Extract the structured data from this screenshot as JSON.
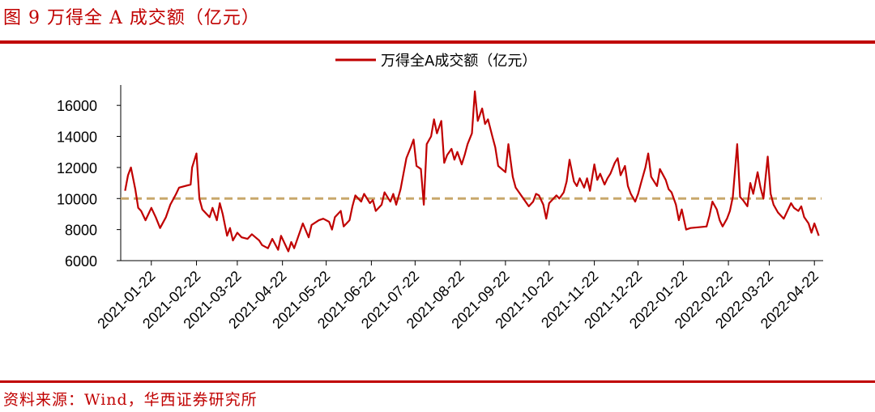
{
  "header": {
    "figure_title": "图 9 万得全 A 成交额（亿元）"
  },
  "footer": {
    "source": "资料来源：Wind，华西证券研究所"
  },
  "colors": {
    "accent": "#c00000",
    "series": "#c00000",
    "reference": "#c8a86b"
  },
  "chart_data": {
    "type": "line",
    "title": "",
    "xlabel": "",
    "ylabel": "",
    "ylim": [
      6000,
      17000
    ],
    "yticks": [
      6000,
      8000,
      10000,
      12000,
      14000,
      16000
    ],
    "xticks": [
      "2021-01-22",
      "2021-02-22",
      "2021-03-22",
      "2021-04-22",
      "2021-05-22",
      "2021-06-22",
      "2021-07-22",
      "2021-08-22",
      "2021-09-22",
      "2021-10-22",
      "2021-11-22",
      "2021-12-22",
      "2022-01-22",
      "2022-02-22",
      "2022-03-22",
      "2022-04-22"
    ],
    "xlim": [
      "2021-01-01",
      "2022-04-28"
    ],
    "legend": {
      "position": "top-center",
      "entries": [
        "万得全A成交额（亿元）"
      ]
    },
    "grid": false,
    "reference_line": {
      "value": 10000,
      "style": "dashed"
    },
    "series": [
      {
        "name": "万得全A成交额（亿元）",
        "points": [
          [
            "2021-01-04",
            10500
          ],
          [
            "2021-01-06",
            11500
          ],
          [
            "2021-01-08",
            12000
          ],
          [
            "2021-01-11",
            10600
          ],
          [
            "2021-01-13",
            9400
          ],
          [
            "2021-01-15",
            9200
          ],
          [
            "2021-01-18",
            8600
          ],
          [
            "2021-01-20",
            9000
          ],
          [
            "2021-01-22",
            9400
          ],
          [
            "2021-01-25",
            8800
          ],
          [
            "2021-01-28",
            8100
          ],
          [
            "2021-02-01",
            8800
          ],
          [
            "2021-02-04",
            9600
          ],
          [
            "2021-02-08",
            10300
          ],
          [
            "2021-02-10",
            10700
          ],
          [
            "2021-02-18",
            10900
          ],
          [
            "2021-02-19",
            12000
          ],
          [
            "2021-02-22",
            12900
          ],
          [
            "2021-02-24",
            10000
          ],
          [
            "2021-02-26",
            9300
          ],
          [
            "2021-03-01",
            9000
          ],
          [
            "2021-03-03",
            8800
          ],
          [
            "2021-03-05",
            9400
          ],
          [
            "2021-03-08",
            8600
          ],
          [
            "2021-03-10",
            9700
          ],
          [
            "2021-03-12",
            9000
          ],
          [
            "2021-03-15",
            7600
          ],
          [
            "2021-03-17",
            8100
          ],
          [
            "2021-03-19",
            7300
          ],
          [
            "2021-03-22",
            7800
          ],
          [
            "2021-03-25",
            7500
          ],
          [
            "2021-03-29",
            7400
          ],
          [
            "2021-04-01",
            7700
          ],
          [
            "2021-04-06",
            7300
          ],
          [
            "2021-04-08",
            7000
          ],
          [
            "2021-04-12",
            6800
          ],
          [
            "2021-04-15",
            7400
          ],
          [
            "2021-04-19",
            6700
          ],
          [
            "2021-04-21",
            7600
          ],
          [
            "2021-04-23",
            7200
          ],
          [
            "2021-04-26",
            6600
          ],
          [
            "2021-04-28",
            7200
          ],
          [
            "2021-04-30",
            6800
          ],
          [
            "2021-05-06",
            8400
          ],
          [
            "2021-05-10",
            7500
          ],
          [
            "2021-05-12",
            8300
          ],
          [
            "2021-05-17",
            8600
          ],
          [
            "2021-05-20",
            8700
          ],
          [
            "2021-05-24",
            8500
          ],
          [
            "2021-05-26",
            8000
          ],
          [
            "2021-05-28",
            8800
          ],
          [
            "2021-06-01",
            9200
          ],
          [
            "2021-06-03",
            8200
          ],
          [
            "2021-06-07",
            8600
          ],
          [
            "2021-06-09",
            9500
          ],
          [
            "2021-06-11",
            10200
          ],
          [
            "2021-06-15",
            9800
          ],
          [
            "2021-06-17",
            10300
          ],
          [
            "2021-06-21",
            9700
          ],
          [
            "2021-06-23",
            9900
          ],
          [
            "2021-06-25",
            9200
          ],
          [
            "2021-06-29",
            9600
          ],
          [
            "2021-07-01",
            10400
          ],
          [
            "2021-07-05",
            9800
          ],
          [
            "2021-07-07",
            10300
          ],
          [
            "2021-07-09",
            9600
          ],
          [
            "2021-07-12",
            10600
          ],
          [
            "2021-07-14",
            11600
          ],
          [
            "2021-07-16",
            12600
          ],
          [
            "2021-07-19",
            13300
          ],
          [
            "2021-07-21",
            13800
          ],
          [
            "2021-07-23",
            12100
          ],
          [
            "2021-07-26",
            11900
          ],
          [
            "2021-07-28",
            9600
          ],
          [
            "2021-07-30",
            13500
          ],
          [
            "2021-08-02",
            14000
          ],
          [
            "2021-08-04",
            15100
          ],
          [
            "2021-08-06",
            14200
          ],
          [
            "2021-08-09",
            15000
          ],
          [
            "2021-08-11",
            12300
          ],
          [
            "2021-08-13",
            12800
          ],
          [
            "2021-08-16",
            13200
          ],
          [
            "2021-08-18",
            12500
          ],
          [
            "2021-08-20",
            13000
          ],
          [
            "2021-08-23",
            12200
          ],
          [
            "2021-08-25",
            12800
          ],
          [
            "2021-08-27",
            13500
          ],
          [
            "2021-08-30",
            14200
          ],
          [
            "2021-09-01",
            16900
          ],
          [
            "2021-09-03",
            15000
          ],
          [
            "2021-09-06",
            15800
          ],
          [
            "2021-09-08",
            14800
          ],
          [
            "2021-09-10",
            15100
          ],
          [
            "2021-09-13",
            14000
          ],
          [
            "2021-09-15",
            13300
          ],
          [
            "2021-09-17",
            12100
          ],
          [
            "2021-09-22",
            11700
          ],
          [
            "2021-09-24",
            13500
          ],
          [
            "2021-09-27",
            11400
          ],
          [
            "2021-09-29",
            10700
          ],
          [
            "2021-10-08",
            9500
          ],
          [
            "2021-10-11",
            9800
          ],
          [
            "2021-10-13",
            10300
          ],
          [
            "2021-10-15",
            10200
          ],
          [
            "2021-10-18",
            9600
          ],
          [
            "2021-10-20",
            8700
          ],
          [
            "2021-10-22",
            9700
          ],
          [
            "2021-10-25",
            10000
          ],
          [
            "2021-10-27",
            10200
          ],
          [
            "2021-10-29",
            10000
          ],
          [
            "2021-11-01",
            10400
          ],
          [
            "2021-11-03",
            11100
          ],
          [
            "2021-11-05",
            12500
          ],
          [
            "2021-11-08",
            11100
          ],
          [
            "2021-11-10",
            10800
          ],
          [
            "2021-11-12",
            11300
          ],
          [
            "2021-11-15",
            10700
          ],
          [
            "2021-11-17",
            11300
          ],
          [
            "2021-11-19",
            10500
          ],
          [
            "2021-11-22",
            12200
          ],
          [
            "2021-11-24",
            11200
          ],
          [
            "2021-11-26",
            11600
          ],
          [
            "2021-11-29",
            10900
          ],
          [
            "2021-12-01",
            11300
          ],
          [
            "2021-12-03",
            11600
          ],
          [
            "2021-12-06",
            12300
          ],
          [
            "2021-12-08",
            12600
          ],
          [
            "2021-12-10",
            11500
          ],
          [
            "2021-12-13",
            12100
          ],
          [
            "2021-12-15",
            10800
          ],
          [
            "2021-12-17",
            10300
          ],
          [
            "2021-12-20",
            9800
          ],
          [
            "2021-12-22",
            10300
          ],
          [
            "2021-12-24",
            11000
          ],
          [
            "2021-12-27",
            12000
          ],
          [
            "2021-12-29",
            12900
          ],
          [
            "2021-12-31",
            11400
          ],
          [
            "2022-01-04",
            10800
          ],
          [
            "2022-01-06",
            11900
          ],
          [
            "2022-01-10",
            11200
          ],
          [
            "2022-01-12",
            10600
          ],
          [
            "2022-01-14",
            10400
          ],
          [
            "2022-01-17",
            9600
          ],
          [
            "2022-01-19",
            8600
          ],
          [
            "2022-01-21",
            9300
          ],
          [
            "2022-01-24",
            8000
          ],
          [
            "2022-01-27",
            8100
          ],
          [
            "2022-02-07",
            8200
          ],
          [
            "2022-02-09",
            8900
          ],
          [
            "2022-02-11",
            9800
          ],
          [
            "2022-02-14",
            9300
          ],
          [
            "2022-02-16",
            8600
          ],
          [
            "2022-02-18",
            8200
          ],
          [
            "2022-02-21",
            8700
          ],
          [
            "2022-02-23",
            9200
          ],
          [
            "2022-02-25",
            10100
          ],
          [
            "2022-02-28",
            13500
          ],
          [
            "2022-03-02",
            10100
          ],
          [
            "2022-03-04",
            9900
          ],
          [
            "2022-03-07",
            9500
          ],
          [
            "2022-03-09",
            11000
          ],
          [
            "2022-03-11",
            10300
          ],
          [
            "2022-03-14",
            11700
          ],
          [
            "2022-03-16",
            10700
          ],
          [
            "2022-03-18",
            10000
          ],
          [
            "2022-03-21",
            12700
          ],
          [
            "2022-03-23",
            10300
          ],
          [
            "2022-03-25",
            9600
          ],
          [
            "2022-03-28",
            9100
          ],
          [
            "2022-03-30",
            8900
          ],
          [
            "2022-04-01",
            8700
          ],
          [
            "2022-04-06",
            9700
          ],
          [
            "2022-04-08",
            9400
          ],
          [
            "2022-04-11",
            9200
          ],
          [
            "2022-04-13",
            9500
          ],
          [
            "2022-04-15",
            8800
          ],
          [
            "2022-04-18",
            8400
          ],
          [
            "2022-04-20",
            7800
          ],
          [
            "2022-04-22",
            8400
          ],
          [
            "2022-04-25",
            7600
          ]
        ]
      }
    ]
  }
}
